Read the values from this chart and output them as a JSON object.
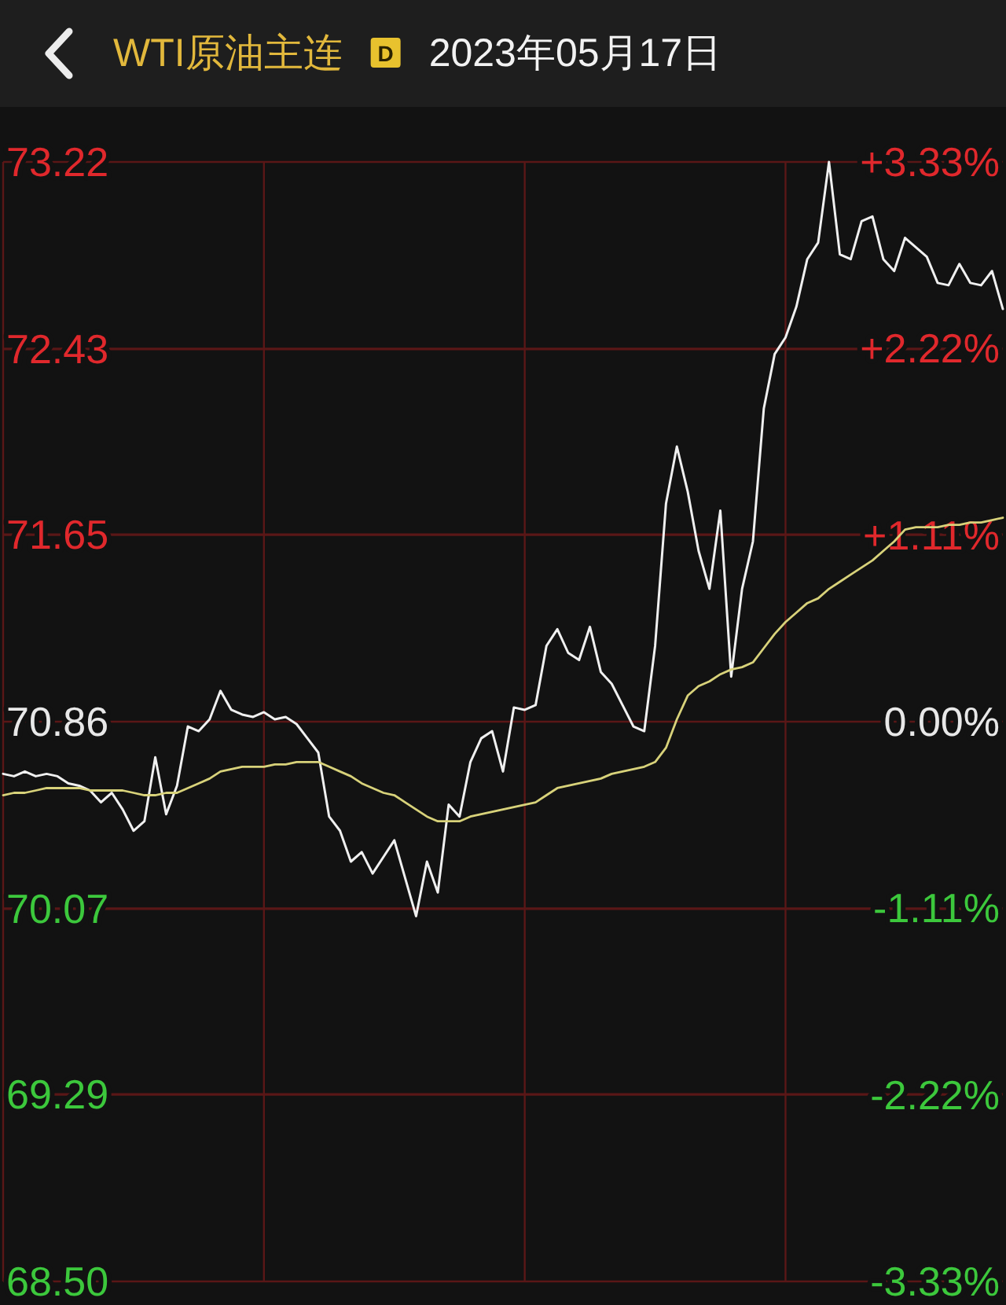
{
  "chart_data": {
    "type": "line",
    "title": "WTI原油主连",
    "subtitle": "2023年05月17日",
    "annotations": [
      "D"
    ],
    "categories": [
      null,
      null,
      null,
      null,
      null,
      null,
      null,
      null,
      null,
      null,
      null,
      null,
      null,
      null,
      null,
      null,
      null,
      null,
      null,
      null,
      null,
      null,
      null,
      null,
      null,
      null,
      null,
      null,
      null,
      null,
      null,
      null,
      null,
      null,
      null,
      null,
      null,
      null,
      null,
      null,
      null,
      null,
      null,
      null,
      null,
      null,
      null,
      null,
      null,
      null,
      null,
      null,
      null,
      null,
      null,
      null,
      null,
      null,
      null,
      null,
      null,
      null,
      null,
      null,
      null,
      null,
      null,
      null,
      null,
      null,
      null,
      null,
      null,
      null,
      null,
      null,
      null,
      null,
      null,
      null,
      null,
      null,
      null,
      null,
      null,
      null,
      null,
      null,
      null,
      null,
      null,
      null,
      null
    ],
    "series": [
      {
        "color": "#f0f0f0",
        "values": [
          70.64,
          70.63,
          70.65,
          70.63,
          70.64,
          70.63,
          70.6,
          70.59,
          70.57,
          70.52,
          70.56,
          70.49,
          70.4,
          70.44,
          70.71,
          70.47,
          70.59,
          70.84,
          70.82,
          70.87,
          70.99,
          70.91,
          70.89,
          70.88,
          70.9,
          70.87,
          70.88,
          70.85,
          70.79,
          70.73,
          70.46,
          70.4,
          70.27,
          70.31,
          70.22,
          70.29,
          70.36,
          70.2,
          70.04,
          70.27,
          70.14,
          70.51,
          70.46,
          70.69,
          70.79,
          70.82,
          70.65,
          70.92,
          70.91,
          70.93,
          71.18,
          71.25,
          71.15,
          71.12,
          71.26,
          71.07,
          71.02,
          70.93,
          70.84,
          70.82,
          71.18,
          71.78,
          72.02,
          71.83,
          71.58,
          71.42,
          71.75,
          71.05,
          71.42,
          71.62,
          72.18,
          72.41,
          72.48,
          72.61,
          72.81,
          72.88,
          73.22,
          72.83,
          72.81,
          72.97,
          72.99,
          72.81,
          72.76,
          72.9,
          72.86,
          72.82,
          72.71,
          72.7,
          72.79,
          72.71,
          72.7,
          72.76,
          72.6
        ]
      },
      {
        "color": "#d8d27a",
        "values": [
          70.55,
          70.56,
          70.56,
          70.57,
          70.58,
          70.58,
          70.58,
          70.58,
          70.57,
          70.57,
          70.57,
          70.57,
          70.56,
          70.55,
          70.55,
          70.56,
          70.56,
          70.58,
          70.6,
          70.62,
          70.65,
          70.66,
          70.67,
          70.67,
          70.67,
          70.68,
          70.68,
          70.69,
          70.69,
          70.69,
          70.67,
          70.65,
          70.63,
          70.6,
          70.58,
          70.56,
          70.55,
          70.52,
          70.49,
          70.46,
          70.44,
          70.44,
          70.44,
          70.46,
          70.47,
          70.48,
          70.49,
          70.5,
          70.51,
          70.52,
          70.55,
          70.58,
          70.59,
          70.6,
          70.61,
          70.62,
          70.64,
          70.65,
          70.66,
          70.67,
          70.69,
          70.75,
          70.87,
          70.97,
          71.01,
          71.03,
          71.06,
          71.08,
          71.09,
          71.11,
          71.17,
          71.23,
          71.28,
          71.32,
          71.36,
          71.38,
          71.42,
          71.45,
          71.48,
          71.51,
          71.54,
          71.58,
          71.62,
          71.67,
          71.68,
          71.68,
          71.68,
          71.69,
          71.69,
          71.7,
          71.7,
          71.71,
          71.72
        ]
      }
    ],
    "ylim": [
      68.5,
      73.22
    ],
    "yticks": [
      73.22,
      72.43,
      71.65,
      70.86,
      70.07,
      69.29,
      {
        "value": 68.5,
        "label": "68.50"
      }
    ],
    "y2lim": [
      -3.33,
      3.33
    ],
    "y2ticks": [
      {
        "value": 3.33,
        "label": "+3.33%"
      },
      {
        "value": 2.22,
        "label": "+2.22%"
      },
      {
        "value": 1.11,
        "label": "+1.11%"
      },
      {
        "value": 0,
        "label": "0.00%"
      },
      {
        "value": -1.11,
        "label": "-1.11%"
      },
      {
        "value": -2.22,
        "label": "-2.22%"
      },
      {
        "value": -3.33,
        "label": "-3.33%"
      }
    ],
    "grid": true
  }
}
